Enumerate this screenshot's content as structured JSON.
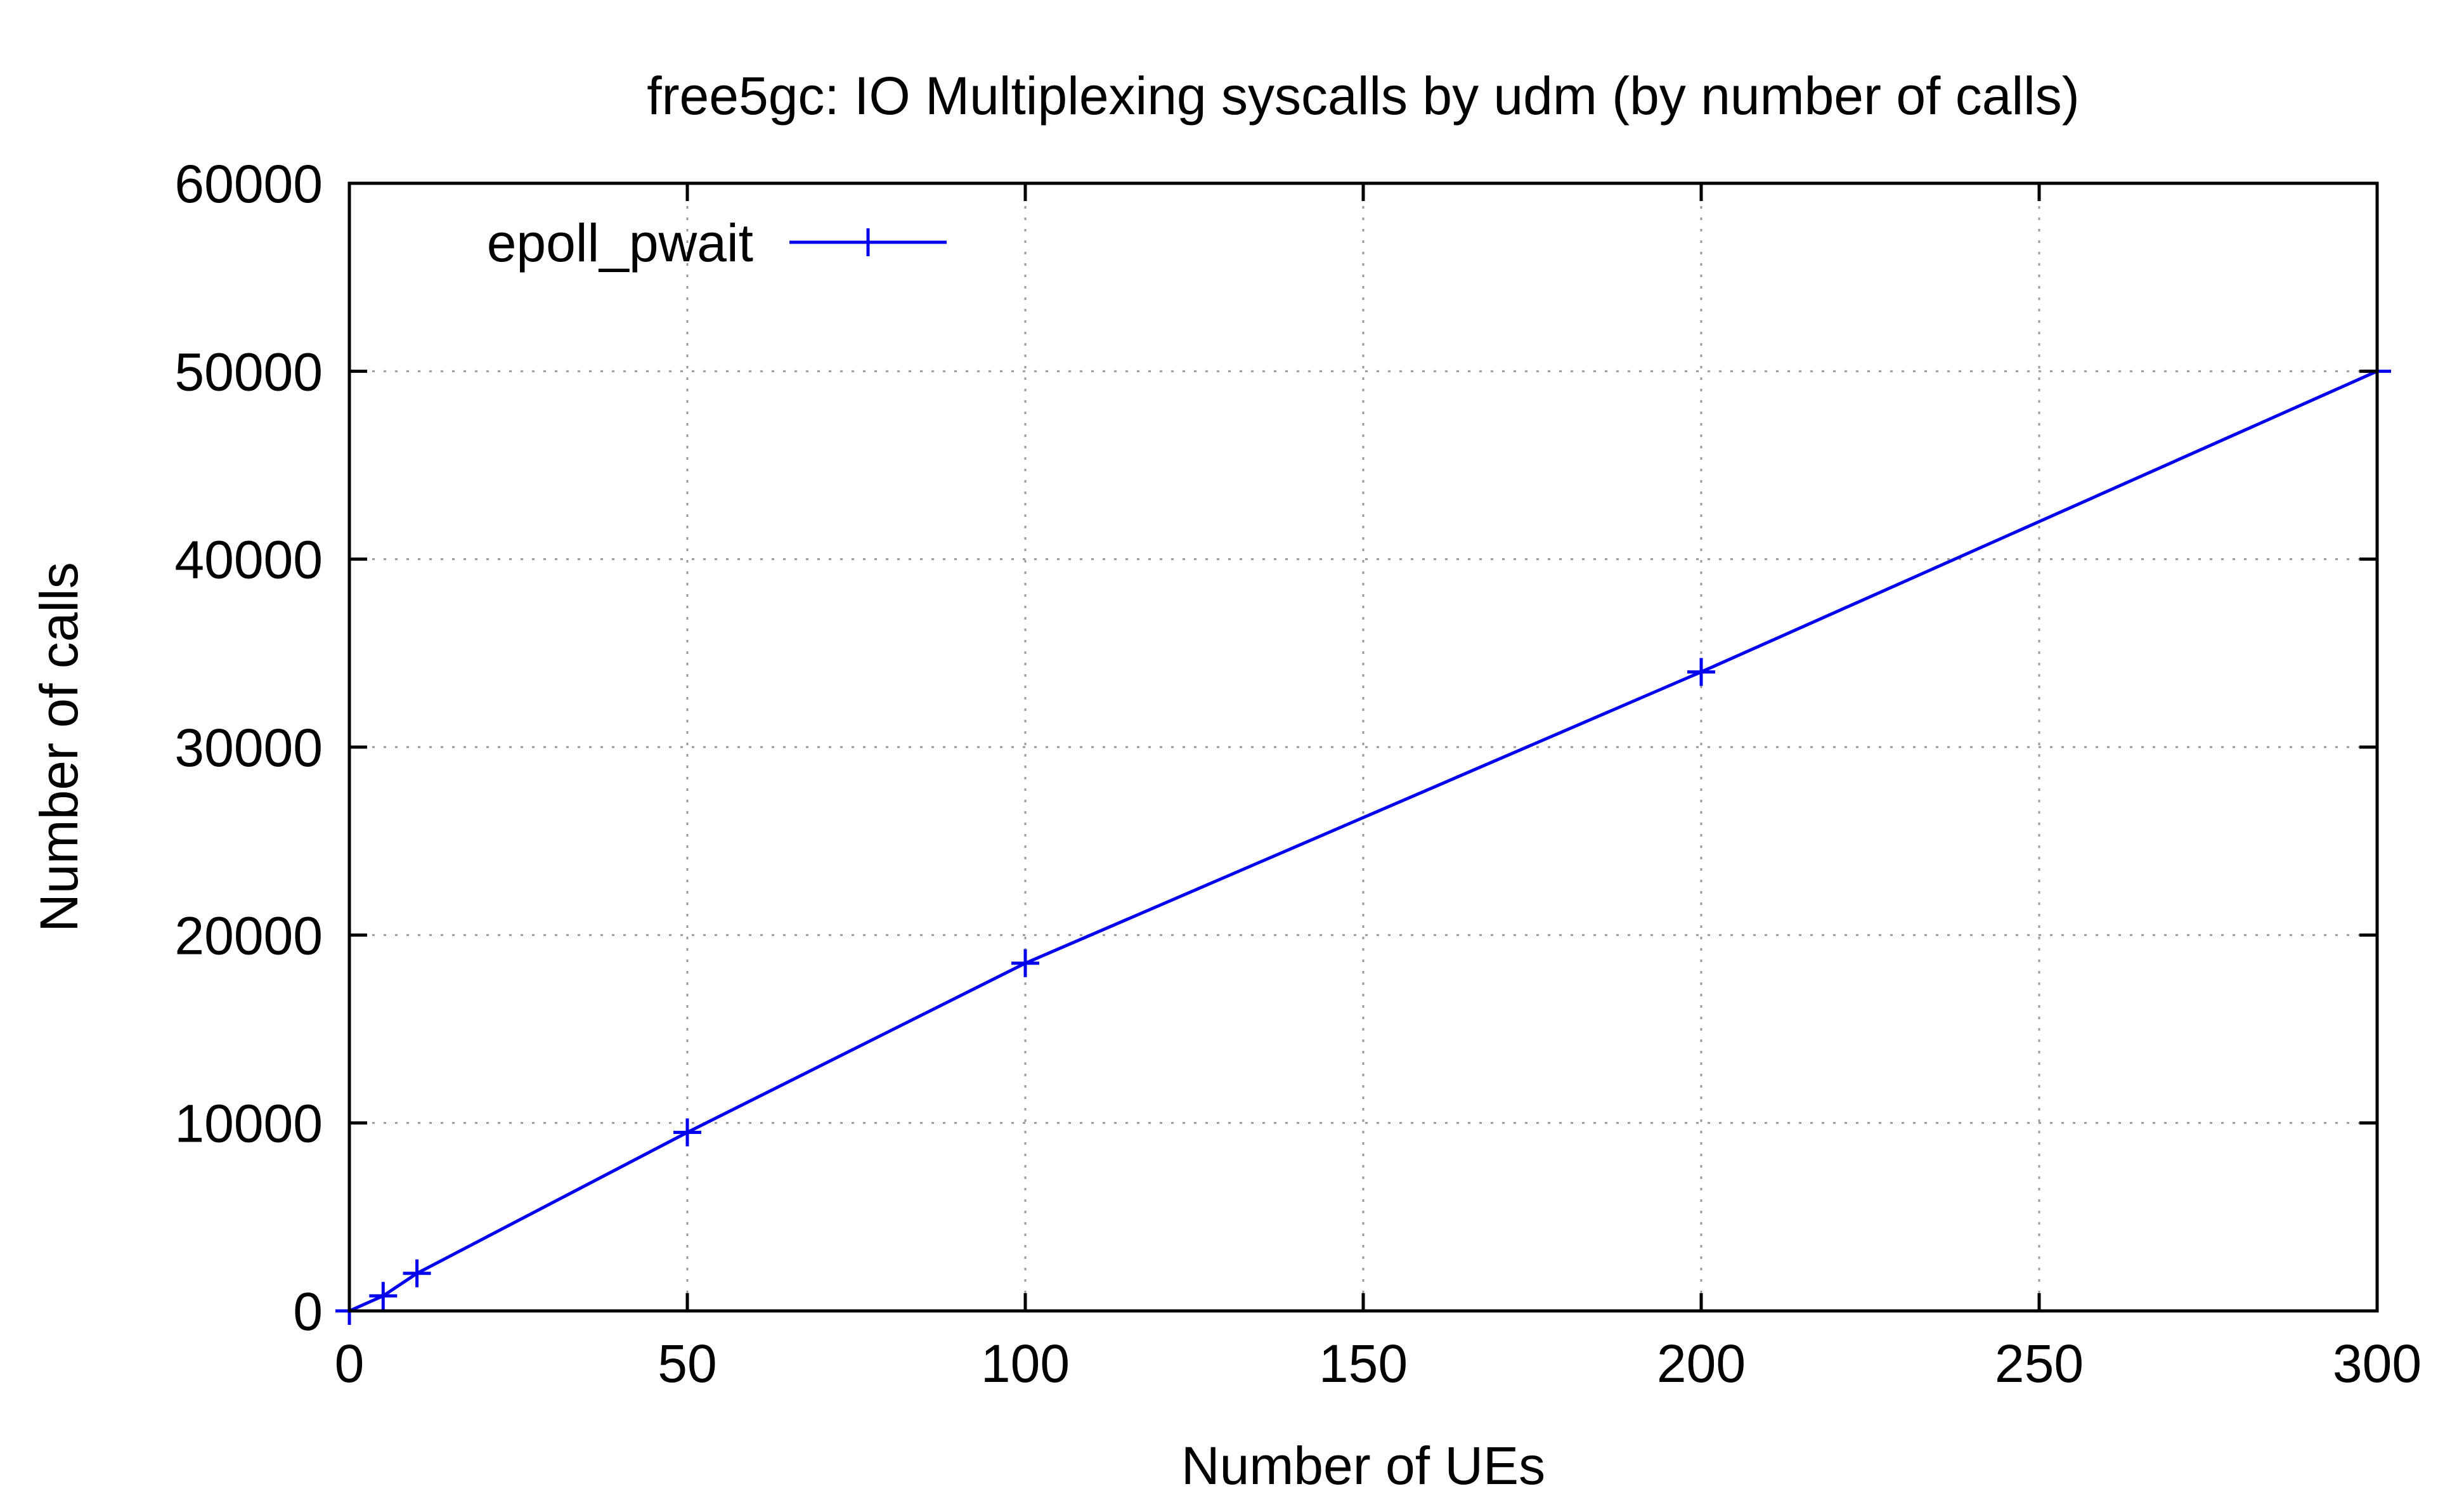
{
  "chart_data": {
    "type": "line",
    "title": "free5gc: IO Multiplexing syscalls by udm (by number of calls)",
    "xlabel": "Number of UEs",
    "ylabel": "Number of calls",
    "xlim": [
      0,
      300
    ],
    "ylim": [
      0,
      60000
    ],
    "xticks": [
      0,
      50,
      100,
      150,
      200,
      250,
      300
    ],
    "yticks": [
      0,
      10000,
      20000,
      30000,
      40000,
      50000,
      60000
    ],
    "grid": true,
    "legend_position": "top-left",
    "series": [
      {
        "name": "epoll_pwait",
        "color": "#0000ee",
        "marker": "plus",
        "x": [
          0,
          5,
          10,
          50,
          100,
          200,
          300
        ],
        "y": [
          0,
          800,
          2000,
          9500,
          18500,
          34000,
          50000
        ]
      }
    ]
  }
}
